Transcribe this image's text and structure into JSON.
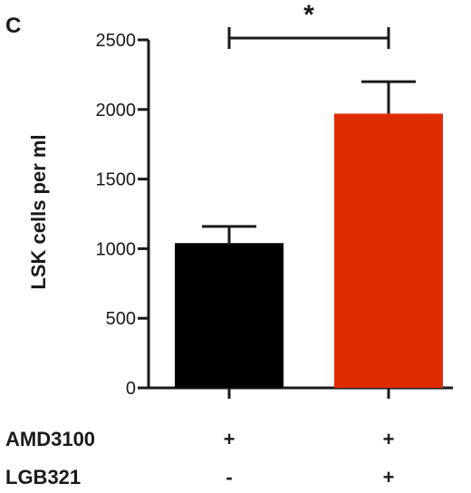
{
  "panel_label": "C",
  "chart_data": {
    "type": "bar",
    "ylabel": "LSK cells per ml",
    "ylim": [
      0,
      2500
    ],
    "yticks": [
      0,
      500,
      1000,
      1500,
      2000,
      2500
    ],
    "grid": false,
    "bars": [
      {
        "value": 1040,
        "error": 120,
        "color": "#000000"
      },
      {
        "value": 1970,
        "error": 230,
        "color": "#e02d00"
      }
    ],
    "conditions": [
      {
        "label": "AMD3100",
        "values": [
          "+",
          "+"
        ]
      },
      {
        "label": "LGB321",
        "values": [
          "-",
          "+"
        ]
      }
    ],
    "significance": {
      "between": [
        0,
        1
      ],
      "label": "*"
    }
  }
}
